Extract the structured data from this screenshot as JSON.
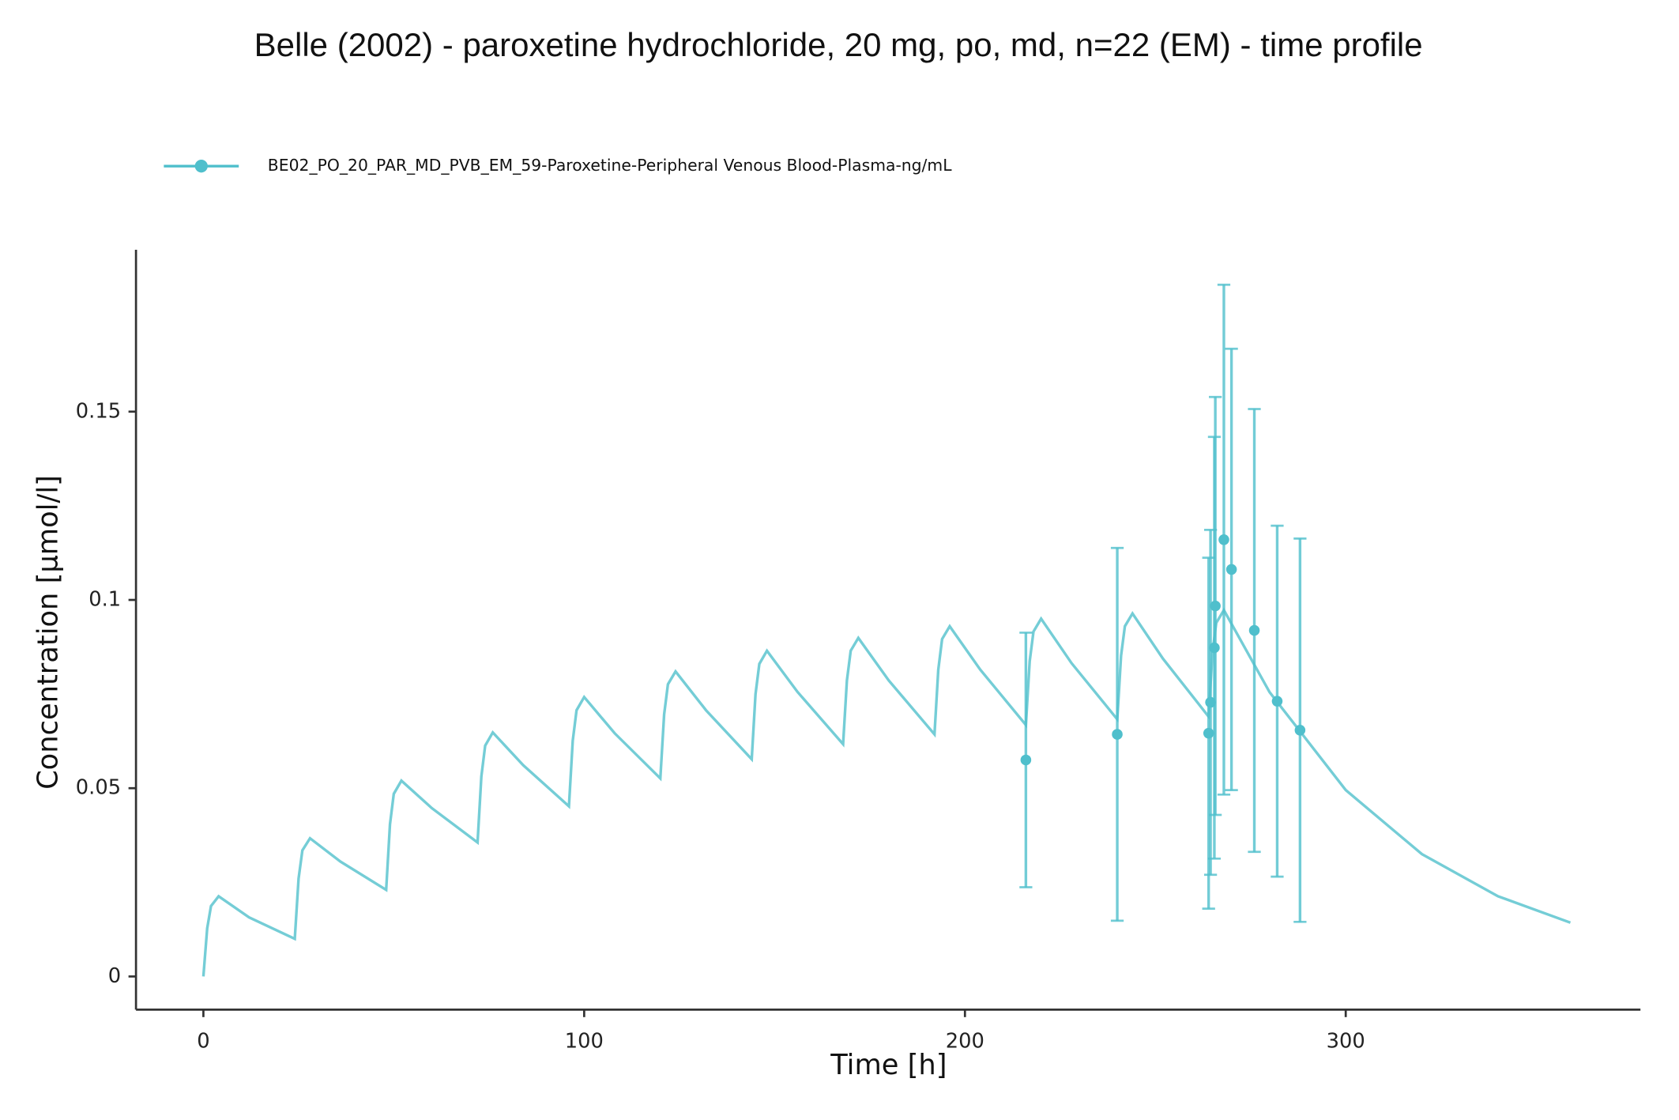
{
  "chart_data": {
    "type": "line",
    "title": "Belle (2002) - paroxetine hydrochloride, 20 mg, po, md, n=22 (EM) - time profile",
    "x_label": "Time [h]",
    "y_label": "Concentration [µmol/l]",
    "xlim": [
      -17.7,
      377.4
    ],
    "ylim": [
      -0.0088,
      0.193
    ],
    "xticks": [
      0,
      100,
      200,
      300
    ],
    "yticks": [
      0,
      0.05,
      0.1,
      0.15
    ],
    "grid": false,
    "legend": "top",
    "series": [
      {
        "color": "#74cdd6",
        "x": [
          0,
          1,
          2,
          4,
          12,
          24,
          25,
          26,
          28,
          36,
          48,
          49,
          50,
          52,
          60,
          72,
          73,
          74,
          76,
          84,
          96,
          97,
          98,
          100,
          108,
          120,
          121,
          122,
          124,
          132,
          144,
          145,
          146,
          148,
          156,
          168,
          169,
          170,
          172,
          180,
          192,
          193,
          194,
          196,
          204,
          216,
          217,
          218,
          220,
          228,
          240,
          241,
          242,
          244,
          252,
          264,
          265,
          266,
          268,
          280,
          300,
          320,
          340,
          359
        ],
        "values": [
          0,
          0.0128,
          0.0187,
          0.0213,
          0.0157,
          0.01,
          0.026,
          0.0335,
          0.0367,
          0.0305,
          0.023,
          0.0404,
          0.0485,
          0.052,
          0.0447,
          0.0356,
          0.0531,
          0.0613,
          0.0648,
          0.0561,
          0.0452,
          0.0626,
          0.0707,
          0.0742,
          0.0646,
          0.0526,
          0.0696,
          0.0776,
          0.081,
          0.0707,
          0.0577,
          0.075,
          0.083,
          0.0865,
          0.0756,
          0.0617,
          0.0786,
          0.0865,
          0.0899,
          0.0786,
          0.0643,
          0.0815,
          0.0896,
          0.093,
          0.0815,
          0.0668,
          0.0837,
          0.0916,
          0.095,
          0.0832,
          0.0683,
          0.0852,
          0.093,
          0.0964,
          0.0844,
          0.069,
          0.086,
          0.0939,
          0.0973,
          0.0755,
          0.0495,
          0.0325,
          0.0213,
          0.0143
        ]
      },
      {
        "name": "BE02_PO_20_PAR_MD_PVB_EM_59-Paroxetine-Peripheral Venous Blood-Plasma-ng/mL",
        "color": "#4fbfcc",
        "x": [
          216,
          240,
          264,
          264.5,
          265.5,
          265.75,
          268,
          270,
          276,
          282,
          288
        ],
        "values": [
          0.0575,
          0.0643,
          0.0646,
          0.0728,
          0.0873,
          0.0984,
          0.116,
          0.1081,
          0.0919,
          0.0731,
          0.0654
        ],
        "errors": [
          0.0338,
          0.0495,
          0.0466,
          0.0458,
          0.056,
          0.0555,
          0.0677,
          0.0586,
          0.0588,
          0.0466,
          0.0509
        ]
      }
    ]
  }
}
